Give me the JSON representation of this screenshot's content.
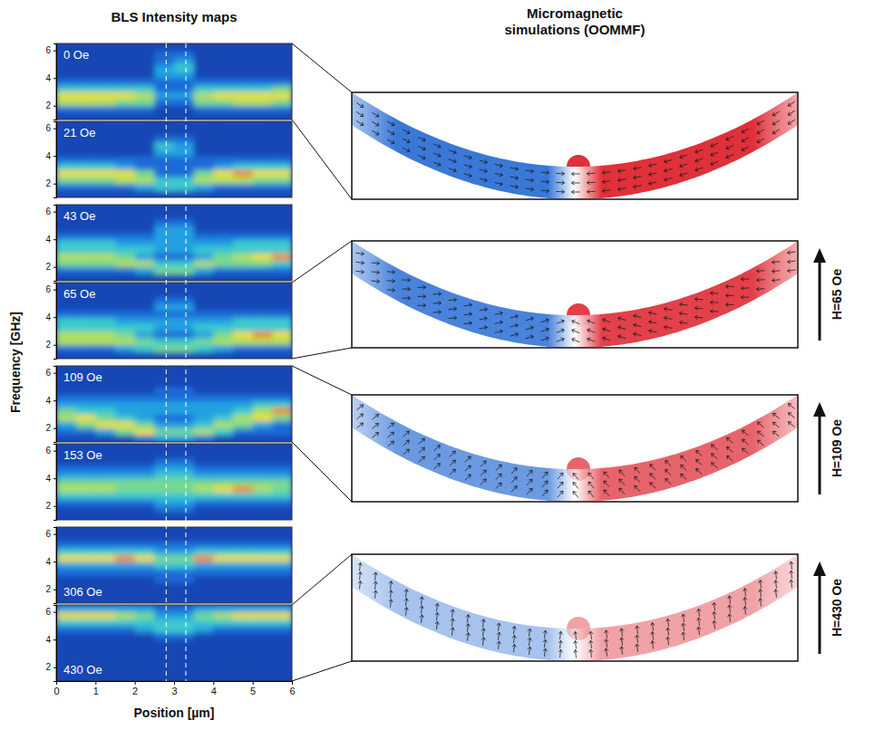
{
  "chart_data": {
    "type": "heatmap",
    "title": "BLS Intensity maps",
    "x_label": "Position [µm]",
    "y_label": "Frequency [GHz]",
    "xlim": [
      0,
      6
    ],
    "xticks": [
      0,
      1,
      2,
      3,
      4,
      5,
      6
    ],
    "ylim": [
      1,
      6.5
    ],
    "yticks": [
      2,
      4,
      6
    ],
    "x_bins": [
      0,
      0.5,
      1,
      1.5,
      2,
      2.5,
      3,
      3.5,
      4,
      4.5,
      5,
      5.5,
      6
    ],
    "y_bins": [
      1,
      1.5,
      2,
      2.5,
      3,
      3.5,
      4,
      4.5,
      5,
      5.5,
      6,
      6.5
    ],
    "zlim": [
      0,
      9
    ],
    "dashed_lines": [
      2.8,
      3.3
    ],
    "panels": [
      {
        "label": "0 Oe",
        "cells": [
          [
            1,
            1,
            1,
            1,
            1,
            1,
            1,
            1,
            1,
            1,
            1,
            1
          ],
          [
            2,
            2,
            2,
            2,
            2,
            1,
            1,
            2,
            2,
            2,
            2,
            2
          ],
          [
            6,
            6,
            6,
            5,
            5,
            2,
            2,
            5,
            5,
            6,
            6,
            5
          ],
          [
            7,
            7,
            7,
            7,
            6,
            3,
            3,
            6,
            7,
            7,
            7,
            7
          ],
          [
            4,
            4,
            4,
            4,
            4,
            2,
            2,
            4,
            4,
            4,
            4,
            5
          ],
          [
            2,
            2,
            2,
            2,
            2,
            2,
            2,
            2,
            2,
            2,
            2,
            2
          ],
          [
            1,
            1,
            1,
            1,
            1,
            3,
            3,
            1,
            1,
            1,
            1,
            1
          ],
          [
            1,
            1,
            1,
            1,
            1,
            3,
            4,
            1,
            1,
            1,
            1,
            1
          ],
          [
            1,
            1,
            1,
            1,
            1,
            2,
            3,
            1,
            1,
            1,
            1,
            1
          ],
          [
            1,
            1,
            1,
            1,
            1,
            2,
            2,
            1,
            1,
            1,
            1,
            1
          ],
          [
            1,
            1,
            1,
            1,
            1,
            1,
            1,
            1,
            1,
            1,
            1,
            1
          ]
        ]
      },
      {
        "label": "21 Oe",
        "cells": [
          [
            1,
            1,
            1,
            1,
            1,
            1,
            1,
            1,
            1,
            1,
            1,
            1
          ],
          [
            2,
            2,
            2,
            2,
            3,
            4,
            4,
            3,
            2,
            2,
            2,
            2
          ],
          [
            5,
            5,
            5,
            6,
            6,
            4,
            4,
            6,
            6,
            6,
            5,
            5
          ],
          [
            7,
            7,
            7,
            7,
            5,
            2,
            2,
            5,
            7,
            8,
            7,
            7
          ],
          [
            4,
            4,
            4,
            3,
            2,
            2,
            2,
            2,
            3,
            4,
            4,
            4
          ],
          [
            2,
            2,
            2,
            2,
            2,
            2,
            2,
            2,
            2,
            2,
            2,
            2
          ],
          [
            1,
            1,
            1,
            1,
            1,
            3,
            3,
            1,
            1,
            1,
            1,
            1
          ],
          [
            1,
            1,
            1,
            1,
            1,
            4,
            3,
            1,
            1,
            1,
            1,
            1
          ],
          [
            1,
            1,
            1,
            1,
            1,
            2,
            2,
            1,
            1,
            1,
            1,
            1
          ],
          [
            1,
            1,
            1,
            1,
            1,
            1,
            1,
            1,
            1,
            1,
            1,
            1
          ],
          [
            1,
            1,
            1,
            1,
            1,
            1,
            1,
            1,
            1,
            1,
            1,
            1
          ]
        ]
      },
      {
        "label": "43 Oe",
        "cells": [
          [
            1,
            1,
            1,
            1,
            1,
            1,
            1,
            1,
            1,
            1,
            1,
            1
          ],
          [
            2,
            2,
            2,
            2,
            3,
            5,
            5,
            3,
            2,
            2,
            2,
            2
          ],
          [
            5,
            5,
            5,
            6,
            6,
            4,
            4,
            6,
            5,
            5,
            5,
            4
          ],
          [
            6,
            6,
            6,
            5,
            3,
            2,
            2,
            3,
            5,
            6,
            7,
            8
          ],
          [
            4,
            4,
            4,
            4,
            4,
            3,
            3,
            4,
            4,
            4,
            4,
            4
          ],
          [
            4,
            4,
            4,
            3,
            3,
            3,
            3,
            3,
            3,
            4,
            4,
            4
          ],
          [
            2,
            2,
            2,
            2,
            2,
            3,
            3,
            2,
            2,
            2,
            2,
            2
          ],
          [
            1,
            1,
            1,
            1,
            1,
            3,
            3,
            1,
            1,
            1,
            1,
            1
          ],
          [
            1,
            1,
            1,
            1,
            1,
            2,
            2,
            1,
            1,
            1,
            1,
            1
          ],
          [
            1,
            1,
            1,
            1,
            1,
            1,
            1,
            1,
            1,
            1,
            1,
            1
          ],
          [
            1,
            1,
            1,
            1,
            1,
            1,
            1,
            1,
            1,
            1,
            1,
            1
          ]
        ]
      },
      {
        "label": "65 Oe",
        "cells": [
          [
            1,
            1,
            1,
            1,
            1,
            1,
            1,
            1,
            1,
            1,
            1,
            1
          ],
          [
            2,
            2,
            2,
            3,
            4,
            5,
            5,
            4,
            3,
            2,
            2,
            2
          ],
          [
            6,
            6,
            6,
            6,
            5,
            4,
            4,
            5,
            6,
            6,
            6,
            6
          ],
          [
            6,
            6,
            6,
            5,
            3,
            2,
            2,
            3,
            5,
            7,
            8,
            7
          ],
          [
            4,
            4,
            4,
            4,
            4,
            3,
            3,
            4,
            4,
            4,
            4,
            4
          ],
          [
            4,
            4,
            4,
            3,
            3,
            3,
            3,
            3,
            3,
            4,
            4,
            4
          ],
          [
            2,
            2,
            2,
            2,
            2,
            2,
            2,
            2,
            2,
            2,
            2,
            2
          ],
          [
            1,
            1,
            1,
            1,
            1,
            3,
            3,
            1,
            1,
            1,
            1,
            1
          ],
          [
            1,
            1,
            1,
            1,
            1,
            2,
            2,
            1,
            1,
            1,
            1,
            1
          ],
          [
            1,
            1,
            1,
            1,
            1,
            1,
            1,
            1,
            1,
            1,
            1,
            1
          ],
          [
            1,
            1,
            1,
            1,
            1,
            1,
            1,
            1,
            1,
            1,
            1,
            1
          ]
        ]
      },
      {
        "label": "109 Oe",
        "cells": [
          [
            1,
            1,
            1,
            1,
            2,
            3,
            3,
            2,
            1,
            1,
            1,
            1
          ],
          [
            2,
            2,
            3,
            5,
            7,
            5,
            5,
            6,
            4,
            2,
            2,
            2
          ],
          [
            3,
            5,
            7,
            7,
            5,
            3,
            3,
            4,
            6,
            5,
            3,
            2
          ],
          [
            6,
            7,
            5,
            4,
            3,
            2,
            2,
            3,
            4,
            6,
            7,
            5
          ],
          [
            5,
            4,
            4,
            3,
            3,
            3,
            3,
            3,
            3,
            4,
            6,
            8
          ],
          [
            3,
            3,
            3,
            3,
            3,
            3,
            3,
            3,
            3,
            3,
            4,
            4
          ],
          [
            2,
            2,
            2,
            2,
            2,
            2,
            2,
            2,
            2,
            2,
            2,
            2
          ],
          [
            1,
            1,
            1,
            1,
            1,
            2,
            2,
            1,
            1,
            1,
            1,
            1
          ],
          [
            1,
            1,
            1,
            1,
            1,
            1,
            1,
            1,
            1,
            1,
            1,
            1
          ],
          [
            1,
            1,
            1,
            1,
            1,
            1,
            1,
            1,
            1,
            1,
            1,
            1
          ],
          [
            1,
            1,
            1,
            1,
            1,
            1,
            1,
            1,
            1,
            1,
            1,
            1
          ]
        ]
      },
      {
        "label": "153 Oe",
        "cells": [
          [
            1,
            1,
            1,
            1,
            1,
            1,
            1,
            1,
            1,
            1,
            1,
            1
          ],
          [
            1,
            1,
            1,
            1,
            1,
            2,
            2,
            1,
            1,
            1,
            1,
            1
          ],
          [
            2,
            2,
            2,
            2,
            2,
            3,
            3,
            2,
            2,
            2,
            2,
            2
          ],
          [
            4,
            4,
            4,
            4,
            4,
            4,
            4,
            4,
            4,
            4,
            4,
            4
          ],
          [
            6,
            6,
            6,
            5,
            5,
            5,
            5,
            6,
            7,
            8,
            6,
            5
          ],
          [
            5,
            5,
            5,
            5,
            5,
            5,
            5,
            5,
            5,
            5,
            5,
            5
          ],
          [
            3,
            3,
            3,
            3,
            3,
            4,
            4,
            3,
            3,
            3,
            3,
            3
          ],
          [
            2,
            2,
            2,
            2,
            2,
            3,
            3,
            2,
            2,
            2,
            2,
            2
          ],
          [
            1,
            1,
            1,
            1,
            1,
            2,
            2,
            1,
            1,
            1,
            1,
            1
          ],
          [
            1,
            1,
            1,
            1,
            1,
            1,
            1,
            1,
            1,
            1,
            1,
            1
          ],
          [
            1,
            1,
            1,
            1,
            1,
            1,
            1,
            1,
            1,
            1,
            1,
            1
          ]
        ]
      },
      {
        "label": "306 Oe",
        "cells": [
          [
            1,
            1,
            1,
            1,
            1,
            1,
            1,
            1,
            1,
            1,
            1,
            1
          ],
          [
            1,
            1,
            1,
            1,
            1,
            1,
            1,
            1,
            1,
            1,
            1,
            1
          ],
          [
            1,
            1,
            1,
            1,
            1,
            1,
            1,
            1,
            1,
            1,
            1,
            1
          ],
          [
            1,
            1,
            1,
            1,
            1,
            2,
            2,
            1,
            1,
            1,
            1,
            1
          ],
          [
            2,
            2,
            2,
            2,
            2,
            2,
            2,
            2,
            2,
            2,
            2,
            2
          ],
          [
            3,
            3,
            3,
            3,
            3,
            4,
            4,
            3,
            3,
            3,
            3,
            3
          ],
          [
            7,
            7,
            7,
            8,
            7,
            5,
            5,
            8,
            7,
            7,
            7,
            7
          ],
          [
            4,
            4,
            4,
            4,
            4,
            3,
            3,
            4,
            4,
            4,
            4,
            4
          ],
          [
            2,
            2,
            2,
            2,
            2,
            2,
            2,
            2,
            2,
            2,
            2,
            2
          ],
          [
            1,
            1,
            1,
            1,
            1,
            1,
            1,
            1,
            1,
            1,
            1,
            1
          ],
          [
            1,
            1,
            1,
            1,
            1,
            1,
            1,
            1,
            1,
            1,
            1,
            1
          ]
        ]
      },
      {
        "label": "430 Oe",
        "cells": [
          [
            1,
            1,
            1,
            1,
            1,
            1,
            1,
            1,
            1,
            1,
            1,
            1
          ],
          [
            1,
            1,
            1,
            1,
            1,
            1,
            1,
            1,
            1,
            1,
            1,
            1
          ],
          [
            1,
            1,
            1,
            1,
            1,
            1,
            1,
            1,
            1,
            1,
            1,
            1
          ],
          [
            1,
            1,
            1,
            1,
            1,
            1,
            1,
            1,
            1,
            1,
            1,
            1
          ],
          [
            1,
            1,
            1,
            1,
            1,
            1,
            1,
            1,
            1,
            1,
            1,
            1
          ],
          [
            1,
            1,
            1,
            1,
            1,
            1,
            1,
            1,
            1,
            1,
            1,
            1
          ],
          [
            1,
            1,
            1,
            1,
            1,
            2,
            2,
            1,
            1,
            1,
            1,
            1
          ],
          [
            2,
            2,
            2,
            2,
            3,
            4,
            4,
            3,
            2,
            2,
            2,
            2
          ],
          [
            4,
            4,
            4,
            4,
            4,
            4,
            4,
            4,
            4,
            4,
            4,
            4
          ],
          [
            7,
            7,
            7,
            6,
            5,
            3,
            3,
            5,
            6,
            7,
            7,
            7
          ],
          [
            3,
            3,
            3,
            3,
            3,
            2,
            2,
            3,
            3,
            3,
            3,
            3
          ]
        ]
      }
    ]
  },
  "simulations": {
    "title": "Micromagnetic simulations (OOMMF)",
    "panels": [
      {
        "linked_panel": 0
      },
      {
        "linked_panel": 3,
        "field_label": "H=65 Oe"
      },
      {
        "linked_panel": 4,
        "field_label": "H=109 Oe"
      },
      {
        "linked_panel": 7,
        "field_label": "H=430 Oe"
      }
    ]
  }
}
